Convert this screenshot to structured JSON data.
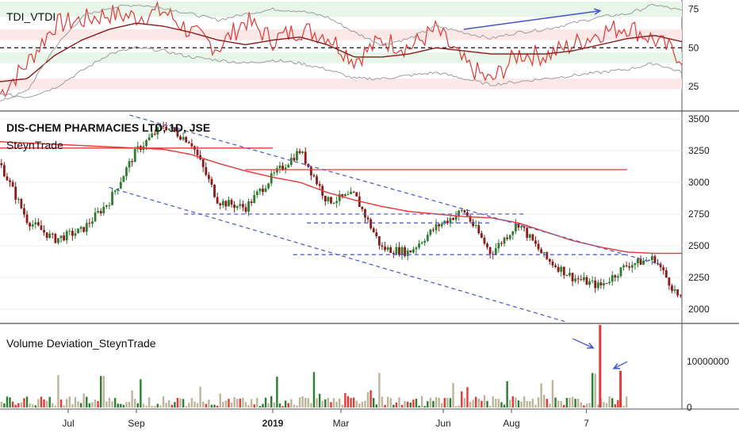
{
  "chart_data": [
    {
      "type": "line",
      "panel": "tdi",
      "title": "TDI_VTDI",
      "ylim": [
        10,
        80
      ],
      "y_ticks": [
        75,
        50,
        25
      ],
      "zones": [
        {
          "name": "",
          "y0": 70,
          "y1": 80,
          "color": "#e8f5e9"
        },
        {
          "name": "",
          "y0": 55,
          "y1": 62,
          "color": "#fde8e8"
        },
        {
          "name": "",
          "y0": 40,
          "y1": 47,
          "color": "#e8f5e9"
        },
        {
          "name": "",
          "y0": 23,
          "y1": 30,
          "color": "#fde8e8"
        }
      ],
      "midline": 50,
      "x": [
        0,
        4,
        8,
        12,
        16,
        20,
        24,
        28,
        32,
        36,
        40,
        44,
        48,
        52,
        56,
        60,
        64,
        68,
        72,
        76,
        80,
        84,
        88,
        92,
        96,
        100
      ],
      "series": [
        {
          "name": "",
          "color": "#e53935",
          "values": [
            20,
            40,
            65,
            68,
            72,
            70,
            74,
            60,
            50,
            68,
            55,
            62,
            58,
            42,
            55,
            50,
            62,
            40,
            28,
            46,
            45,
            52,
            60,
            64,
            55,
            44
          ]
        },
        {
          "name": "",
          "color": "#8b1a1a",
          "values": [
            28,
            30,
            45,
            55,
            62,
            66,
            64,
            60,
            55,
            52,
            55,
            57,
            52,
            44,
            44,
            46,
            50,
            48,
            46,
            46,
            46,
            48,
            52,
            56,
            58,
            54
          ]
        },
        {
          "name": "",
          "color": "#9e9e9e",
          "values": [
            15,
            22,
            50,
            70,
            76,
            78,
            76,
            72,
            68,
            72,
            75,
            74,
            70,
            60,
            52,
            56,
            64,
            60,
            56,
            60,
            62,
            66,
            70,
            72,
            78,
            74
          ]
        },
        {
          "name": "",
          "color": "#9e9e9e",
          "values": [
            20,
            18,
            24,
            35,
            46,
            50,
            48,
            44,
            42,
            40,
            42,
            40,
            36,
            30,
            30,
            32,
            34,
            30,
            26,
            28,
            30,
            32,
            34,
            36,
            40,
            34
          ]
        }
      ],
      "annotations": [
        {
          "type": "arrow",
          "x0": 68,
          "y0": 62,
          "x1": 88,
          "y1": 74,
          "color": "#4455cc"
        }
      ]
    },
    {
      "type": "candlestick",
      "panel": "price",
      "title": "DIS-CHEM PHARMACIES LTD, 1D, JSE",
      "subtitle": "SteynTrade",
      "ylim": [
        1900,
        3550
      ],
      "y_ticks": [
        3500,
        3250,
        3000,
        2750,
        2500,
        2250,
        2000
      ],
      "x": [
        0,
        4,
        8,
        12,
        16,
        20,
        24,
        28,
        32,
        36,
        40,
        44,
        48,
        52,
        56,
        60,
        64,
        68,
        72,
        76,
        80,
        84,
        88,
        92,
        96,
        100
      ],
      "close": [
        3150,
        2700,
        2550,
        2620,
        2850,
        3250,
        3450,
        3320,
        2850,
        2800,
        3050,
        3250,
        2850,
        2900,
        2480,
        2450,
        2650,
        2780,
        2440,
        2680,
        2400,
        2250,
        2180,
        2350,
        2400,
        2050
      ],
      "moving_average": {
        "name": "",
        "color": "#e53935",
        "values": [
          3320,
          3310,
          3300,
          3290,
          3280,
          3270,
          3260,
          3220,
          3150,
          3090,
          3040,
          3000,
          2920,
          2860,
          2810,
          2770,
          2750,
          2730,
          2720,
          2680,
          2610,
          2540,
          2490,
          2450,
          2440,
          2440
        ]
      },
      "horizontal_lines": [
        {
          "y": 3270,
          "x0": 0,
          "x1": 40,
          "style": "solid",
          "color": "#e53935"
        },
        {
          "y": 3100,
          "x0": 36,
          "x1": 92,
          "style": "solid",
          "color": "#e53935"
        },
        {
          "y": 2750,
          "x0": 27,
          "x1": 77,
          "style": "dashed",
          "color": "#5560d0"
        },
        {
          "y": 2680,
          "x0": 45,
          "x1": 72,
          "style": "dashed",
          "color": "#5560d0"
        },
        {
          "y": 2430,
          "x0": 43,
          "x1": 92,
          "style": "dashed",
          "color": "#5560d0"
        }
      ],
      "trendlines": [
        {
          "x0": 19,
          "y0": 3530,
          "x1": 97,
          "y1": 2350,
          "style": "dashed",
          "color": "#5560d0"
        },
        {
          "x0": 16,
          "y0": 2960,
          "x1": 83,
          "y1": 1900,
          "style": "dashed",
          "color": "#5560d0"
        }
      ]
    },
    {
      "type": "bar",
      "panel": "volume",
      "title": "Volume Deviation_SteynTrade",
      "ylim": [
        0,
        18000000
      ],
      "y_ticks": [
        10000000,
        0
      ],
      "y_tick_labels": [
        "10000000",
        "0"
      ],
      "x_tick_labels": [
        "Jul",
        "Sep",
        "2019",
        "Mar",
        "Jun",
        "Aug",
        "7"
      ],
      "x_tick_positions": [
        10,
        20,
        40,
        50,
        65,
        75,
        86
      ],
      "spikes": [
        {
          "x": 88,
          "value": 18000000,
          "color": "#e53935"
        },
        {
          "x": 91,
          "value": 8000000,
          "color": "#e53935"
        }
      ],
      "annotations": [
        {
          "type": "arrow",
          "x0": 84,
          "y0": 15000000,
          "x1": 87,
          "y1": 13000000,
          "color": "#4455cc"
        },
        {
          "type": "arrow",
          "x0": 92,
          "y0": 10000000,
          "x1": 90,
          "y1": 8500000,
          "color": "#4455cc"
        }
      ]
    }
  ]
}
